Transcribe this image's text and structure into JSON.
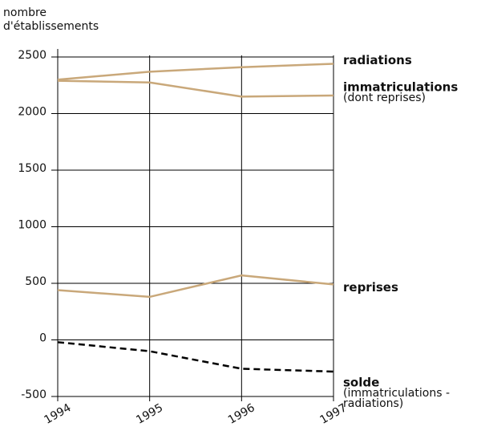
{
  "chart_data": {
    "type": "line",
    "y_label": [
      "nombre",
      "d'établissements"
    ],
    "x": [
      1994,
      1995,
      1996,
      1997
    ],
    "xlim": [
      1994,
      1997
    ],
    "xticks": [
      1994,
      1995,
      1996,
      1997
    ],
    "ylim": [
      -500,
      2500
    ],
    "yticks": [
      -500,
      0,
      500,
      1000,
      1500,
      2000,
      2500
    ],
    "grid": true,
    "series": [
      {
        "name": "radiations",
        "color": "#c9a87a",
        "dashed": false,
        "values": [
          2300,
          2370,
          2410,
          2440
        ]
      },
      {
        "name": "immatriculations",
        "note": [
          "(dont reprises)"
        ],
        "color": "#c9a87a",
        "dashed": false,
        "values": [
          2290,
          2275,
          2150,
          2160
        ]
      },
      {
        "name": "reprises",
        "color": "#c9a87a",
        "dashed": false,
        "values": [
          440,
          380,
          570,
          490
        ]
      },
      {
        "name": "solde",
        "note": [
          "(immatriculations -",
          "radiations)"
        ],
        "color": "#000000",
        "dashed": true,
        "values": [
          -20,
          -100,
          -255,
          -280
        ]
      }
    ]
  }
}
